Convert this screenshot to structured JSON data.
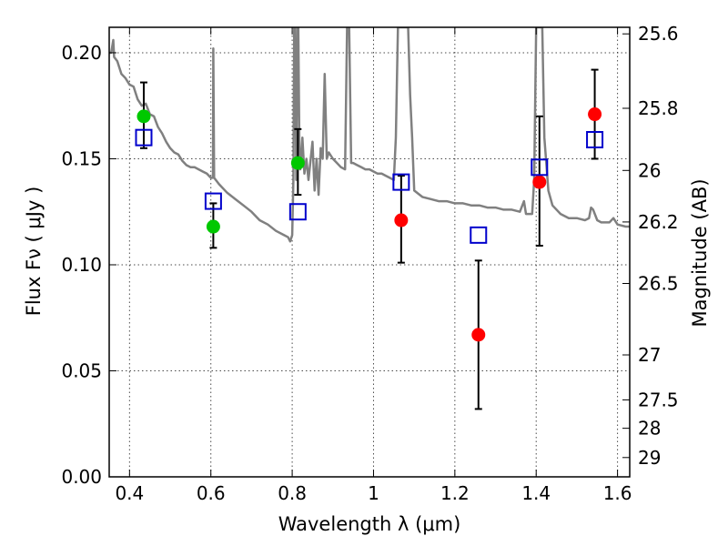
{
  "chart_data": {
    "type": "scatter",
    "xlabel": "Wavelength  λ (μm)",
    "ylabel": "Flux  Fν  ( μJy )",
    "ylabel_right": "Magnitude (AB)",
    "xlim": [
      0.35,
      1.63
    ],
    "ylim": [
      0.0,
      0.212
    ],
    "x_ticks": [
      0.4,
      0.6,
      0.8,
      1.0,
      1.2,
      1.4,
      1.6
    ],
    "x_tick_labels": [
      "0.4",
      "0.6",
      "0.8",
      "1",
      "1.2",
      "1.4",
      "1.6"
    ],
    "y_ticks": [
      0.0,
      0.05,
      0.1,
      0.15,
      0.2
    ],
    "y_tick_labels": [
      "0.00",
      "0.05",
      "0.10",
      "0.15",
      "0.20"
    ],
    "right_ticks": [
      {
        "label": "25.6",
        "flux": 0.2089
      },
      {
        "label": "25.8",
        "flux": 0.1738
      },
      {
        "label": "26",
        "flux": 0.1445
      },
      {
        "label": "26.2",
        "flux": 0.1202
      },
      {
        "label": "26.5",
        "flux": 0.0912
      },
      {
        "label": "27",
        "flux": 0.0575
      },
      {
        "label": "27.5",
        "flux": 0.0363
      },
      {
        "label": "28",
        "flux": 0.0229
      },
      {
        "label": "29",
        "flux": 0.0091
      }
    ],
    "grid": true,
    "model_spectrum": {
      "color": "#808080",
      "points": [
        [
          0.35,
          0.2
        ],
        [
          0.355,
          0.2
        ],
        [
          0.36,
          0.206
        ],
        [
          0.362,
          0.198
        ],
        [
          0.37,
          0.196
        ],
        [
          0.38,
          0.19
        ],
        [
          0.39,
          0.188
        ],
        [
          0.4,
          0.185
        ],
        [
          0.41,
          0.184
        ],
        [
          0.42,
          0.178
        ],
        [
          0.43,
          0.175
        ],
        [
          0.44,
          0.176
        ],
        [
          0.45,
          0.171
        ],
        [
          0.46,
          0.17
        ],
        [
          0.47,
          0.165
        ],
        [
          0.48,
          0.162
        ],
        [
          0.49,
          0.158
        ],
        [
          0.5,
          0.155
        ],
        [
          0.51,
          0.153
        ],
        [
          0.52,
          0.152
        ],
        [
          0.53,
          0.149
        ],
        [
          0.54,
          0.147
        ],
        [
          0.55,
          0.146
        ],
        [
          0.56,
          0.146
        ],
        [
          0.57,
          0.145
        ],
        [
          0.58,
          0.144
        ],
        [
          0.59,
          0.143
        ],
        [
          0.6,
          0.141
        ],
        [
          0.605,
          0.141
        ],
        [
          0.606,
          0.202
        ],
        [
          0.608,
          0.141
        ],
        [
          0.62,
          0.138
        ],
        [
          0.64,
          0.134
        ],
        [
          0.66,
          0.131
        ],
        [
          0.68,
          0.128
        ],
        [
          0.7,
          0.125
        ],
        [
          0.72,
          0.121
        ],
        [
          0.74,
          0.119
        ],
        [
          0.76,
          0.116
        ],
        [
          0.78,
          0.114
        ],
        [
          0.79,
          0.113
        ],
        [
          0.795,
          0.111
        ],
        [
          0.8,
          0.114
        ],
        [
          0.803,
          0.14
        ],
        [
          0.805,
          0.212
        ],
        [
          0.807,
          0.212
        ],
        [
          0.81,
          0.14
        ],
        [
          0.813,
          0.212
        ],
        [
          0.815,
          0.212
        ],
        [
          0.818,
          0.15
        ],
        [
          0.82,
          0.145
        ],
        [
          0.825,
          0.16
        ],
        [
          0.83,
          0.143
        ],
        [
          0.835,
          0.15
        ],
        [
          0.84,
          0.14
        ],
        [
          0.85,
          0.158
        ],
        [
          0.855,
          0.135
        ],
        [
          0.86,
          0.15
        ],
        [
          0.865,
          0.133
        ],
        [
          0.87,
          0.155
        ],
        [
          0.875,
          0.15
        ],
        [
          0.88,
          0.19
        ],
        [
          0.885,
          0.15
        ],
        [
          0.89,
          0.153
        ],
        [
          0.9,
          0.15
        ],
        [
          0.91,
          0.148
        ],
        [
          0.92,
          0.146
        ],
        [
          0.93,
          0.145
        ],
        [
          0.935,
          0.212
        ],
        [
          0.94,
          0.212
        ],
        [
          0.945,
          0.148
        ],
        [
          0.95,
          0.148
        ],
        [
          0.96,
          0.147
        ],
        [
          0.97,
          0.146
        ],
        [
          0.98,
          0.145
        ],
        [
          0.99,
          0.145
        ],
        [
          1.0,
          0.144
        ],
        [
          1.01,
          0.143
        ],
        [
          1.02,
          0.143
        ],
        [
          1.03,
          0.142
        ],
        [
          1.04,
          0.141
        ],
        [
          1.05,
          0.14
        ],
        [
          1.055,
          0.16
        ],
        [
          1.06,
          0.212
        ],
        [
          1.085,
          0.212
        ],
        [
          1.09,
          0.18
        ],
        [
          1.095,
          0.16
        ],
        [
          1.1,
          0.135
        ],
        [
          1.12,
          0.132
        ],
        [
          1.14,
          0.131
        ],
        [
          1.16,
          0.13
        ],
        [
          1.18,
          0.13
        ],
        [
          1.2,
          0.129
        ],
        [
          1.22,
          0.129
        ],
        [
          1.24,
          0.128
        ],
        [
          1.26,
          0.128
        ],
        [
          1.28,
          0.127
        ],
        [
          1.3,
          0.127
        ],
        [
          1.32,
          0.126
        ],
        [
          1.34,
          0.126
        ],
        [
          1.36,
          0.125
        ],
        [
          1.37,
          0.13
        ],
        [
          1.375,
          0.124
        ],
        [
          1.38,
          0.124
        ],
        [
          1.39,
          0.124
        ],
        [
          1.395,
          0.14
        ],
        [
          1.4,
          0.212
        ],
        [
          1.415,
          0.212
        ],
        [
          1.42,
          0.16
        ],
        [
          1.43,
          0.135
        ],
        [
          1.44,
          0.128
        ],
        [
          1.46,
          0.124
        ],
        [
          1.48,
          0.122
        ],
        [
          1.5,
          0.122
        ],
        [
          1.52,
          0.121
        ],
        [
          1.53,
          0.122
        ],
        [
          1.535,
          0.127
        ],
        [
          1.54,
          0.126
        ],
        [
          1.55,
          0.121
        ],
        [
          1.56,
          0.12
        ],
        [
          1.58,
          0.12
        ],
        [
          1.59,
          0.122
        ],
        [
          1.6,
          0.119
        ],
        [
          1.62,
          0.118
        ],
        [
          1.63,
          0.118
        ]
      ]
    },
    "series": [
      {
        "marker": "circle",
        "color": "#00c800",
        "points": [
          {
            "x": 0.435,
            "y": 0.17,
            "err_lo": 0.015,
            "err_hi": 0.016
          },
          {
            "x": 0.606,
            "y": 0.118,
            "err_lo": 0.01,
            "err_hi": 0.011
          },
          {
            "x": 0.814,
            "y": 0.148,
            "err_lo": 0.015,
            "err_hi": 0.016
          }
        ]
      },
      {
        "marker": "circle",
        "color": "#ff0000",
        "points": [
          {
            "x": 1.068,
            "y": 0.121,
            "err_lo": 0.02,
            "err_hi": 0.021
          },
          {
            "x": 1.258,
            "y": 0.067,
            "err_lo": 0.035,
            "err_hi": 0.035
          },
          {
            "x": 1.408,
            "y": 0.139,
            "err_lo": 0.03,
            "err_hi": 0.031
          },
          {
            "x": 1.544,
            "y": 0.171,
            "err_lo": 0.021,
            "err_hi": 0.021
          }
        ]
      },
      {
        "marker": "open-square",
        "color": "#0000cc",
        "points": [
          {
            "x": 0.435,
            "y": 0.16
          },
          {
            "x": 0.606,
            "y": 0.13
          },
          {
            "x": 0.814,
            "y": 0.125
          },
          {
            "x": 1.068,
            "y": 0.139
          },
          {
            "x": 1.258,
            "y": 0.114
          },
          {
            "x": 1.408,
            "y": 0.146
          },
          {
            "x": 1.544,
            "y": 0.159
          }
        ]
      }
    ]
  }
}
